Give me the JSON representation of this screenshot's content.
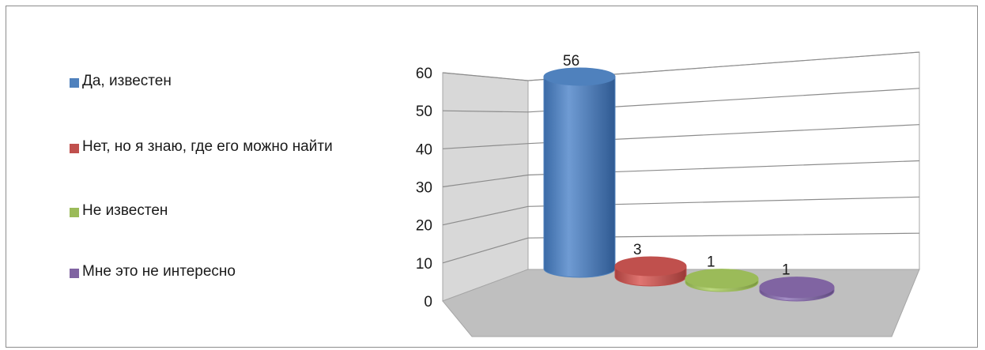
{
  "chart_data": {
    "type": "bar",
    "style": "3d-cylinder",
    "categories": [
      "Да, известен",
      "Нет, но я знаю, где его можно найти",
      "Не известен",
      "Мне это не интересно"
    ],
    "values": [
      56,
      3,
      1,
      1
    ],
    "data_labels": [
      "56",
      "3",
      "1",
      "1"
    ],
    "colors": [
      "#4f81bd",
      "#c0504d",
      "#9bbb59",
      "#8064a2"
    ],
    "ylim": [
      0,
      60
    ],
    "y_ticks": [
      "0",
      "10",
      "20",
      "30",
      "40",
      "50",
      "60"
    ],
    "grid": true,
    "legend_position": "left"
  },
  "legend": [
    {
      "label": "Да, известен",
      "color": "#4f81bd"
    },
    {
      "label": "Нет, но я знаю, где его можно найти",
      "color": "#c0504d"
    },
    {
      "label": "Не известен",
      "color": "#9bbb59"
    },
    {
      "label": "Мне это не интересно",
      "color": "#8064a2"
    }
  ]
}
